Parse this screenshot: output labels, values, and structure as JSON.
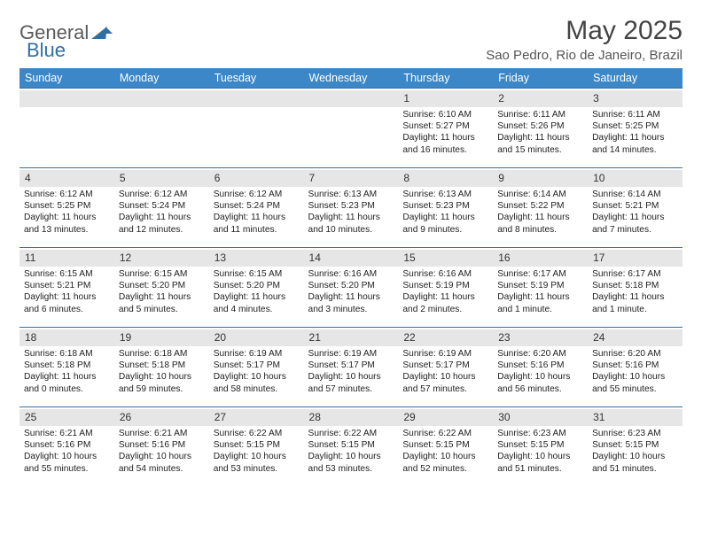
{
  "brand": {
    "part1": "General",
    "part2": "Blue"
  },
  "title": "May 2025",
  "location": "Sao Pedro, Rio de Janeiro, Brazil",
  "colors": {
    "header_bg": "#3b87c8",
    "header_text": "#ffffff",
    "rule": "#2f6fa8",
    "daynum_bg": "#e6e6e6",
    "text": "#222222",
    "title": "#444444"
  },
  "weekdays": [
    "Sunday",
    "Monday",
    "Tuesday",
    "Wednesday",
    "Thursday",
    "Friday",
    "Saturday"
  ],
  "weeks": [
    [
      {
        "empty": true
      },
      {
        "empty": true
      },
      {
        "empty": true
      },
      {
        "empty": true
      },
      {
        "n": "1",
        "sr": "6:10 AM",
        "ss": "5:27 PM",
        "dh": "11",
        "dm": "16"
      },
      {
        "n": "2",
        "sr": "6:11 AM",
        "ss": "5:26 PM",
        "dh": "11",
        "dm": "15"
      },
      {
        "n": "3",
        "sr": "6:11 AM",
        "ss": "5:25 PM",
        "dh": "11",
        "dm": "14"
      }
    ],
    [
      {
        "n": "4",
        "sr": "6:12 AM",
        "ss": "5:25 PM",
        "dh": "11",
        "dm": "13"
      },
      {
        "n": "5",
        "sr": "6:12 AM",
        "ss": "5:24 PM",
        "dh": "11",
        "dm": "12"
      },
      {
        "n": "6",
        "sr": "6:12 AM",
        "ss": "5:24 PM",
        "dh": "11",
        "dm": "11"
      },
      {
        "n": "7",
        "sr": "6:13 AM",
        "ss": "5:23 PM",
        "dh": "11",
        "dm": "10"
      },
      {
        "n": "8",
        "sr": "6:13 AM",
        "ss": "5:23 PM",
        "dh": "11",
        "dm": "9"
      },
      {
        "n": "9",
        "sr": "6:14 AM",
        "ss": "5:22 PM",
        "dh": "11",
        "dm": "8"
      },
      {
        "n": "10",
        "sr": "6:14 AM",
        "ss": "5:21 PM",
        "dh": "11",
        "dm": "7"
      }
    ],
    [
      {
        "n": "11",
        "sr": "6:15 AM",
        "ss": "5:21 PM",
        "dh": "11",
        "dm": "6"
      },
      {
        "n": "12",
        "sr": "6:15 AM",
        "ss": "5:20 PM",
        "dh": "11",
        "dm": "5"
      },
      {
        "n": "13",
        "sr": "6:15 AM",
        "ss": "5:20 PM",
        "dh": "11",
        "dm": "4"
      },
      {
        "n": "14",
        "sr": "6:16 AM",
        "ss": "5:20 PM",
        "dh": "11",
        "dm": "3"
      },
      {
        "n": "15",
        "sr": "6:16 AM",
        "ss": "5:19 PM",
        "dh": "11",
        "dm": "2"
      },
      {
        "n": "16",
        "sr": "6:17 AM",
        "ss": "5:19 PM",
        "dh": "11",
        "dm": "1"
      },
      {
        "n": "17",
        "sr": "6:17 AM",
        "ss": "5:18 PM",
        "dh": "11",
        "dm": "1"
      }
    ],
    [
      {
        "n": "18",
        "sr": "6:18 AM",
        "ss": "5:18 PM",
        "dh": "11",
        "dm": "0"
      },
      {
        "n": "19",
        "sr": "6:18 AM",
        "ss": "5:18 PM",
        "dh": "10",
        "dm": "59"
      },
      {
        "n": "20",
        "sr": "6:19 AM",
        "ss": "5:17 PM",
        "dh": "10",
        "dm": "58"
      },
      {
        "n": "21",
        "sr": "6:19 AM",
        "ss": "5:17 PM",
        "dh": "10",
        "dm": "57"
      },
      {
        "n": "22",
        "sr": "6:19 AM",
        "ss": "5:17 PM",
        "dh": "10",
        "dm": "57"
      },
      {
        "n": "23",
        "sr": "6:20 AM",
        "ss": "5:16 PM",
        "dh": "10",
        "dm": "56"
      },
      {
        "n": "24",
        "sr": "6:20 AM",
        "ss": "5:16 PM",
        "dh": "10",
        "dm": "55"
      }
    ],
    [
      {
        "n": "25",
        "sr": "6:21 AM",
        "ss": "5:16 PM",
        "dh": "10",
        "dm": "55"
      },
      {
        "n": "26",
        "sr": "6:21 AM",
        "ss": "5:16 PM",
        "dh": "10",
        "dm": "54"
      },
      {
        "n": "27",
        "sr": "6:22 AM",
        "ss": "5:15 PM",
        "dh": "10",
        "dm": "53"
      },
      {
        "n": "28",
        "sr": "6:22 AM",
        "ss": "5:15 PM",
        "dh": "10",
        "dm": "53"
      },
      {
        "n": "29",
        "sr": "6:22 AM",
        "ss": "5:15 PM",
        "dh": "10",
        "dm": "52"
      },
      {
        "n": "30",
        "sr": "6:23 AM",
        "ss": "5:15 PM",
        "dh": "10",
        "dm": "51"
      },
      {
        "n": "31",
        "sr": "6:23 AM",
        "ss": "5:15 PM",
        "dh": "10",
        "dm": "51"
      }
    ]
  ],
  "labels": {
    "sunrise": "Sunrise:",
    "sunset": "Sunset:",
    "daylight": "Daylight:",
    "hours": "hours",
    "and": "and",
    "minutes": "minutes.",
    "minute": "minute."
  }
}
